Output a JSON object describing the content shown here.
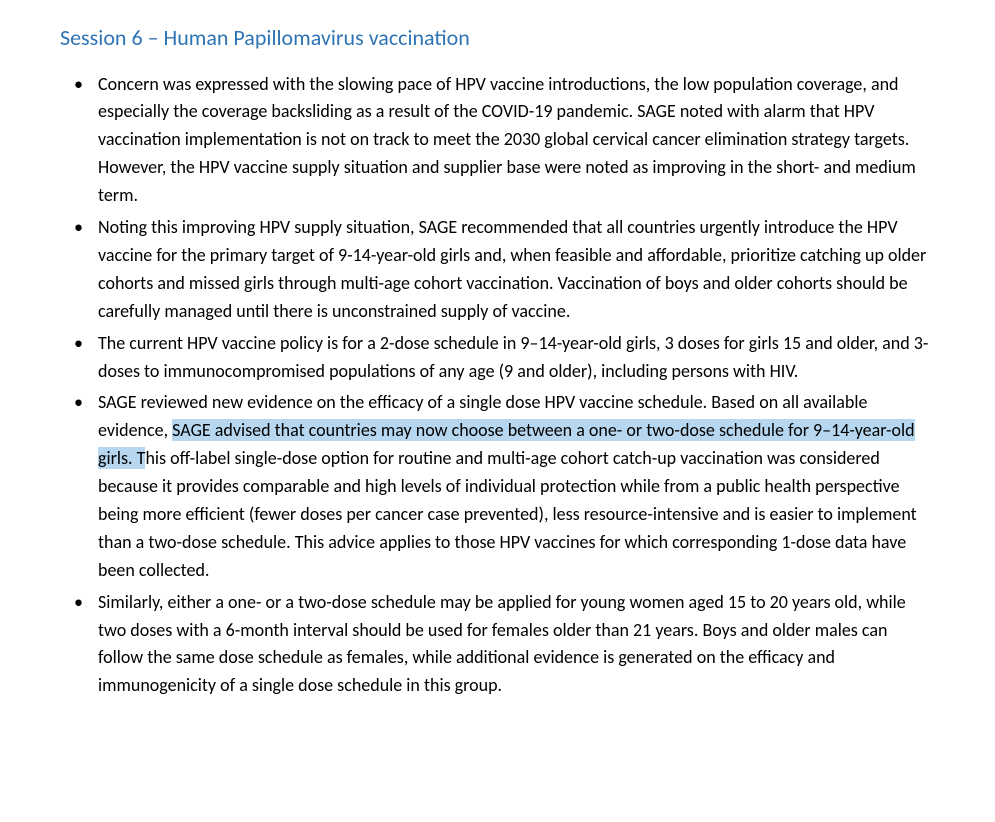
{
  "title": "Session 6 – Human Papillomavirus vaccination",
  "highlight_color": "#b6d7ef",
  "title_color": "#2e74b5",
  "bullets": [
    {
      "text": "Concern was expressed with the slowing pace of HPV vaccine introductions, the low population coverage, and especially the coverage backsliding as a result of the COVID-19 pandemic. SAGE noted with alarm that HPV vaccination implementation is not on track to meet the 2030 global cervical cancer elimination strategy targets. However, the HPV vaccine supply situation and supplier base were noted as improving in the short- and medium term."
    },
    {
      "text": "Noting this improving HPV supply situation, SAGE recommended that all countries urgently introduce the HPV vaccine for the primary target of 9-14-year-old girls and, when feasible and affordable, prioritize catching up older cohorts and missed girls through multi-age cohort vaccination. Vaccination of boys and older cohorts should be carefully managed until there is unconstrained supply of vaccine."
    },
    {
      "text": "The current HPV vaccine policy is for a 2-dose schedule in 9–14-year-old girls, 3 doses for girls 15 and older, and 3-doses to immunocompromised populations of any age (9 and older), including persons with HIV."
    },
    {
      "pre": "SAGE reviewed new evidence on the efficacy of a single dose HPV vaccine schedule. Based on all available evidence, ",
      "hl": "SAGE advised that countries may now choose between a one- or two-dose schedule for 9–14-year-old girls. T",
      "post": "his off-label single-dose option for routine and multi-age cohort catch-up vaccination was considered because it provides comparable and high levels of individual protection while from a public health perspective being more efficient (fewer doses per cancer case prevented), less resource-intensive and is easier to implement than a two-dose schedule. This advice applies to those HPV vaccines for which corresponding 1-dose data have been collected."
    },
    {
      "text": "Similarly, either a one- or a two-dose schedule may be applied for young women aged 15 to 20 years old, while two doses with a 6-month interval should be used for females older than 21 years.  Boys and older males can follow the same dose schedule as females, while additional evidence is generated on the efficacy and immunogenicity of a single dose schedule in this group."
    }
  ]
}
